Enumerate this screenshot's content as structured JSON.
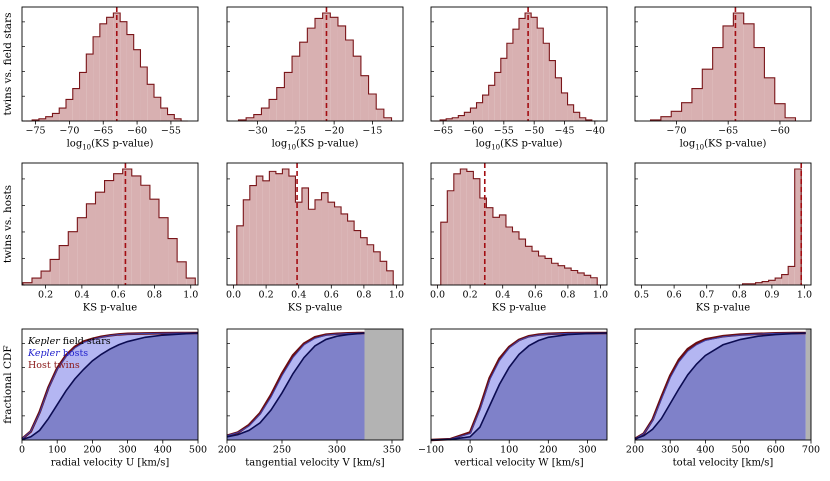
{
  "colors": {
    "hist_fill": "#d8b0b1",
    "hist_edge": "#7a1519",
    "median_line": "#a30d12",
    "cdf_field_fill": "#7f81c9",
    "cdf_hosts_fill": "#b4b6f2",
    "cdf_field_line": "#0c0c52",
    "cdf_twins_line": "#6b0d12",
    "gray_region": "#b3b3b3"
  },
  "row_labels": [
    "twins vs. field stars",
    "twins vs. hosts",
    "fractional CDF"
  ],
  "legend": {
    "field": {
      "em": "Kepler",
      "rest": " field stars",
      "color": "#000000"
    },
    "hosts": {
      "em": "Kepler",
      "rest": " hosts",
      "color": "#2222cc"
    },
    "twins": {
      "em": "",
      "rest": "Host twins",
      "color": "#8b1a1a"
    }
  },
  "chart_data": [
    {
      "type": "bar",
      "row": 0,
      "col": 0,
      "xlabel": "log10(KS p-value)",
      "xlim": [
        -77,
        -51
      ],
      "ticks": [
        -75,
        -70,
        -65,
        -60,
        -55
      ],
      "tick_labels": [
        "−75",
        "−70",
        "−65",
        "−60",
        "−55"
      ],
      "median": -63,
      "x": [
        -76,
        -75,
        -74,
        -73,
        -72,
        -71,
        -70,
        -69,
        -68,
        -67,
        -66,
        -65,
        -64,
        -63,
        -62,
        -61,
        -60,
        -59,
        -58,
        -57,
        -56,
        -55,
        -54,
        -53
      ],
      "values": [
        0,
        1,
        2,
        4,
        7,
        12,
        20,
        30,
        45,
        62,
        78,
        90,
        96,
        100,
        92,
        80,
        66,
        50,
        34,
        22,
        12,
        6,
        2,
        0
      ]
    },
    {
      "type": "bar",
      "row": 0,
      "col": 1,
      "xlabel": "log10(KS p-value)",
      "xlim": [
        -34,
        -11
      ],
      "ticks": [
        -30,
        -25,
        -20,
        -15
      ],
      "tick_labels": [
        "−30",
        "−25",
        "−20",
        "−15"
      ],
      "median": -21,
      "x": [
        -32,
        -31,
        -30,
        -29,
        -28,
        -27,
        -26,
        -25,
        -24,
        -23,
        -22,
        -21,
        -20,
        -19,
        -18,
        -17,
        -16,
        -15,
        -14,
        -13
      ],
      "values": [
        1,
        3,
        6,
        12,
        20,
        31,
        45,
        60,
        73,
        86,
        95,
        100,
        96,
        88,
        75,
        60,
        42,
        25,
        11,
        3
      ]
    },
    {
      "type": "bar",
      "row": 0,
      "col": 2,
      "xlabel": "log10(KS p-value)",
      "xlim": [
        -67,
        -38
      ],
      "ticks": [
        -65,
        -60,
        -55,
        -50,
        -45,
        -40
      ],
      "tick_labels": [
        "−65",
        "−60",
        "−55",
        "−50",
        "−45",
        "−40"
      ],
      "median": -51,
      "x": [
        -66,
        -65,
        -64,
        -63,
        -62,
        -61,
        -60,
        -59,
        -58,
        -57,
        -56,
        -55,
        -54,
        -53,
        -52,
        -51,
        -50,
        -49,
        -48,
        -47,
        -46,
        -45,
        -44,
        -43,
        -42,
        -41,
        -40
      ],
      "values": [
        0,
        1,
        2,
        3,
        5,
        8,
        12,
        17,
        24,
        33,
        45,
        58,
        72,
        85,
        95,
        100,
        96,
        86,
        72,
        56,
        40,
        26,
        15,
        8,
        3,
        1,
        0
      ]
    },
    {
      "type": "bar",
      "row": 0,
      "col": 3,
      "xlabel": "log10(KS p-value)",
      "xlim": [
        -74,
        -57
      ],
      "ticks": [
        -70,
        -65,
        -60
      ],
      "tick_labels": [
        "−70",
        "−65",
        "−60"
      ],
      "median": -64.3,
      "x": [
        -72,
        -71,
        -70,
        -69,
        -68,
        -67,
        -66,
        -65,
        -64,
        -63,
        -62,
        -61,
        -60,
        -59
      ],
      "values": [
        1,
        4,
        9,
        17,
        30,
        48,
        68,
        88,
        100,
        90,
        68,
        40,
        16,
        3
      ]
    },
    {
      "type": "bar",
      "row": 1,
      "col": 0,
      "xlabel": "KS p-value",
      "xlim": [
        0.07,
        1.04
      ],
      "ticks": [
        0.2,
        0.4,
        0.6,
        0.8,
        1.0
      ],
      "tick_labels": [
        "0.2",
        "0.4",
        "0.6",
        "0.8",
        "1.0"
      ],
      "median": 0.64,
      "x": [
        0.1,
        0.15,
        0.2,
        0.25,
        0.3,
        0.35,
        0.4,
        0.45,
        0.5,
        0.55,
        0.6,
        0.65,
        0.7,
        0.75,
        0.8,
        0.85,
        0.9,
        0.95,
        1.0
      ],
      "values": [
        2,
        6,
        12,
        22,
        34,
        46,
        58,
        70,
        80,
        90,
        96,
        100,
        94,
        86,
        74,
        58,
        40,
        20,
        6
      ]
    },
    {
      "type": "bar",
      "row": 1,
      "col": 1,
      "xlabel": "KS p-value",
      "xlim": [
        -0.04,
        1.04
      ],
      "ticks": [
        0.0,
        0.2,
        0.4,
        0.6,
        0.8,
        1.0
      ],
      "tick_labels": [
        "0.0",
        "0.2",
        "0.4",
        "0.6",
        "0.8",
        "1.0"
      ],
      "median": 0.39,
      "x": [
        0.0,
        0.04,
        0.08,
        0.12,
        0.16,
        0.2,
        0.24,
        0.28,
        0.32,
        0.36,
        0.4,
        0.44,
        0.48,
        0.52,
        0.56,
        0.6,
        0.64,
        0.68,
        0.72,
        0.76,
        0.8,
        0.84,
        0.88,
        0.92,
        0.96,
        1.0
      ],
      "values": [
        0,
        50,
        72,
        84,
        92,
        88,
        96,
        94,
        98,
        92,
        70,
        82,
        64,
        72,
        78,
        70,
        66,
        60,
        54,
        46,
        40,
        34,
        28,
        20,
        12,
        0
      ]
    },
    {
      "type": "bar",
      "row": 1,
      "col": 2,
      "xlabel": "KS p-value",
      "xlim": [
        -0.04,
        1.04
      ],
      "ticks": [
        0.0,
        0.2,
        0.4,
        0.6,
        0.8,
        1.0
      ],
      "tick_labels": [
        "0.0",
        "0.2",
        "0.4",
        "0.6",
        "0.8",
        "1.0"
      ],
      "median": 0.29,
      "x": [
        0.0,
        0.04,
        0.08,
        0.12,
        0.16,
        0.2,
        0.24,
        0.28,
        0.32,
        0.36,
        0.4,
        0.44,
        0.48,
        0.52,
        0.56,
        0.6,
        0.64,
        0.68,
        0.72,
        0.76,
        0.8,
        0.84,
        0.88,
        0.92,
        0.96,
        1.0
      ],
      "values": [
        0,
        52,
        78,
        92,
        96,
        94,
        88,
        72,
        64,
        56,
        58,
        48,
        44,
        38,
        32,
        28,
        24,
        22,
        18,
        16,
        14,
        12,
        10,
        8,
        6,
        0
      ]
    },
    {
      "type": "bar",
      "row": 1,
      "col": 3,
      "xlabel": "KS p-value",
      "xlim": [
        0.48,
        1.02
      ],
      "ticks": [
        0.5,
        0.6,
        0.7,
        0.8,
        0.9,
        1.0
      ],
      "tick_labels": [
        "0.5",
        "0.6",
        "0.7",
        "0.8",
        "0.9",
        "1.0"
      ],
      "median": 0.99,
      "x": [
        0.8,
        0.82,
        0.84,
        0.86,
        0.88,
        0.9,
        0.92,
        0.94,
        0.96,
        0.98,
        1.0
      ],
      "values": [
        0,
        1,
        1,
        2,
        3,
        4,
        6,
        9,
        16,
        100,
        0
      ]
    },
    {
      "type": "area",
      "row": 2,
      "col": 0,
      "xlabel": "radial velocity U [km/s]",
      "xlim": [
        0,
        500
      ],
      "ticks": [
        0,
        100,
        200,
        300,
        400,
        500
      ],
      "tick_labels": [
        "0",
        "100",
        "200",
        "300",
        "400",
        "500"
      ],
      "ylim": [
        0,
        1
      ],
      "gray_from": null,
      "series": [
        {
          "name": "Kepler field stars",
          "x": [
            0,
            25,
            50,
            75,
            100,
            125,
            150,
            175,
            200,
            225,
            250,
            275,
            300,
            350,
            400,
            450,
            500
          ],
          "values": [
            0.005,
            0.03,
            0.09,
            0.2,
            0.33,
            0.46,
            0.57,
            0.66,
            0.74,
            0.8,
            0.85,
            0.89,
            0.92,
            0.96,
            0.98,
            0.99,
            1.0
          ]
        },
        {
          "name": "Kepler hosts",
          "x": [
            0,
            25,
            50,
            75,
            100,
            125,
            150,
            175,
            200,
            225,
            250,
            275,
            300,
            350,
            400,
            450,
            500
          ],
          "values": [
            0.01,
            0.08,
            0.25,
            0.48,
            0.66,
            0.78,
            0.86,
            0.91,
            0.94,
            0.96,
            0.975,
            0.985,
            0.99,
            0.995,
            0.998,
            0.999,
            1.0
          ]
        },
        {
          "name": "Host twins",
          "x": [
            0,
            25,
            50,
            75,
            100,
            125,
            150,
            175,
            200,
            225,
            250,
            275,
            300,
            350,
            400,
            450,
            500
          ],
          "values": [
            0.01,
            0.08,
            0.26,
            0.49,
            0.67,
            0.79,
            0.87,
            0.92,
            0.945,
            0.965,
            0.978,
            0.987,
            0.992,
            0.996,
            0.998,
            0.999,
            1.0
          ]
        }
      ]
    },
    {
      "type": "area",
      "row": 2,
      "col": 1,
      "xlabel": "tangential velocity V [km/s]",
      "xlim": [
        200,
        360
      ],
      "ticks": [
        200,
        250,
        300,
        350
      ],
      "tick_labels": [
        "200",
        "250",
        "300",
        "350"
      ],
      "ylim": [
        0,
        1
      ],
      "gray_from": 325,
      "series": [
        {
          "name": "Kepler field stars",
          "x": [
            200,
            210,
            220,
            230,
            240,
            250,
            260,
            270,
            280,
            290,
            300,
            310,
            320,
            325
          ],
          "values": [
            0.03,
            0.05,
            0.09,
            0.16,
            0.28,
            0.44,
            0.62,
            0.77,
            0.88,
            0.94,
            0.97,
            0.985,
            0.995,
            1.0
          ]
        },
        {
          "name": "Kepler hosts",
          "x": [
            200,
            210,
            220,
            230,
            240,
            250,
            260,
            270,
            280,
            290,
            300,
            310,
            320,
            325
          ],
          "values": [
            0.04,
            0.07,
            0.13,
            0.24,
            0.4,
            0.6,
            0.77,
            0.89,
            0.95,
            0.98,
            0.99,
            0.995,
            0.998,
            1.0
          ]
        },
        {
          "name": "Host twins",
          "x": [
            200,
            210,
            220,
            230,
            240,
            250,
            260,
            270,
            280,
            290,
            300,
            310,
            320,
            325
          ],
          "values": [
            0.04,
            0.07,
            0.14,
            0.25,
            0.42,
            0.62,
            0.79,
            0.9,
            0.96,
            0.985,
            0.993,
            0.997,
            0.999,
            1.0
          ]
        }
      ]
    },
    {
      "type": "area",
      "row": 2,
      "col": 2,
      "xlabel": "vertical velocity W [km/s]",
      "xlim": [
        -100,
        350
      ],
      "ticks": [
        -100,
        0,
        100,
        200,
        300
      ],
      "tick_labels": [
        "−100",
        "0",
        "100",
        "200",
        "300"
      ],
      "ylim": [
        0,
        1
      ],
      "gray_from": null,
      "series": [
        {
          "name": "Kepler field stars",
          "x": [
            -100,
            -50,
            0,
            25,
            50,
            75,
            100,
            125,
            150,
            175,
            200,
            250,
            300,
            350
          ],
          "values": [
            0.0,
            0.005,
            0.03,
            0.12,
            0.32,
            0.52,
            0.68,
            0.8,
            0.88,
            0.93,
            0.96,
            0.985,
            0.995,
            1.0
          ]
        },
        {
          "name": "Kepler hosts",
          "x": [
            -100,
            -50,
            0,
            25,
            50,
            75,
            100,
            125,
            150,
            175,
            200,
            250,
            300,
            350
          ],
          "values": [
            0.0,
            0.008,
            0.06,
            0.28,
            0.56,
            0.74,
            0.86,
            0.93,
            0.965,
            0.98,
            0.99,
            0.997,
            0.999,
            1.0
          ]
        },
        {
          "name": "Host twins",
          "x": [
            -100,
            -50,
            0,
            25,
            50,
            75,
            100,
            125,
            150,
            175,
            200,
            250,
            300,
            350
          ],
          "values": [
            0.0,
            0.008,
            0.07,
            0.3,
            0.58,
            0.76,
            0.87,
            0.935,
            0.97,
            0.985,
            0.992,
            0.998,
            0.999,
            1.0
          ]
        }
      ]
    },
    {
      "type": "area",
      "row": 2,
      "col": 3,
      "xlabel": "total velocity [km/s]",
      "xlim": [
        200,
        700
      ],
      "ticks": [
        200,
        300,
        400,
        500,
        600,
        700
      ],
      "tick_labels": [
        "200",
        "300",
        "400",
        "500",
        "600",
        "700"
      ],
      "ylim": [
        0,
        1
      ],
      "gray_from": 685,
      "series": [
        {
          "name": "Kepler field stars",
          "x": [
            200,
            225,
            250,
            275,
            300,
            325,
            350,
            375,
            400,
            450,
            500,
            550,
            600,
            650,
            685
          ],
          "values": [
            0.01,
            0.04,
            0.1,
            0.2,
            0.34,
            0.48,
            0.61,
            0.71,
            0.79,
            0.89,
            0.94,
            0.97,
            0.985,
            0.995,
            1.0
          ]
        },
        {
          "name": "Kepler hosts",
          "x": [
            200,
            225,
            250,
            275,
            300,
            325,
            350,
            375,
            400,
            450,
            500,
            550,
            600,
            650,
            685
          ],
          "values": [
            0.01,
            0.06,
            0.18,
            0.38,
            0.58,
            0.73,
            0.83,
            0.89,
            0.93,
            0.965,
            0.98,
            0.99,
            0.996,
            0.999,
            1.0
          ]
        },
        {
          "name": "Host twins",
          "x": [
            200,
            225,
            250,
            275,
            300,
            325,
            350,
            375,
            400,
            450,
            500,
            550,
            600,
            650,
            685
          ],
          "values": [
            0.01,
            0.06,
            0.19,
            0.4,
            0.6,
            0.75,
            0.85,
            0.905,
            0.94,
            0.97,
            0.985,
            0.992,
            0.997,
            0.999,
            1.0
          ]
        }
      ]
    }
  ]
}
